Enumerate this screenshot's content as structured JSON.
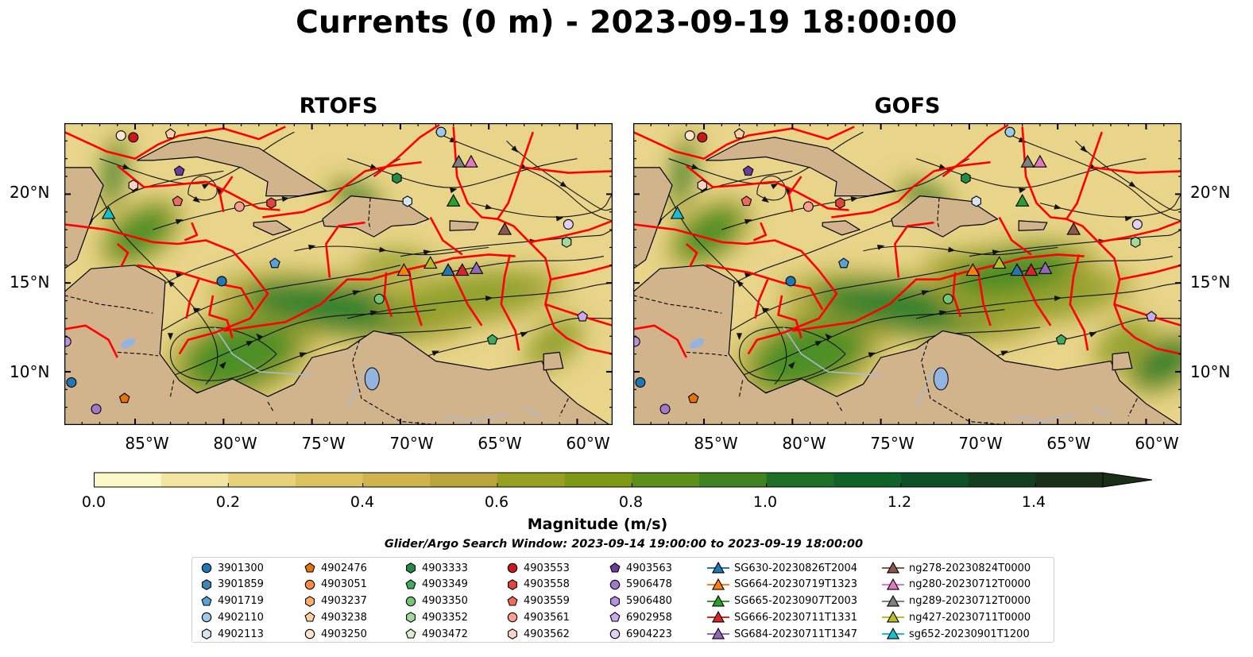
{
  "title": "Currents (0 m) - 2023-09-19 18:00:00",
  "panels": [
    {
      "title": "RTOFS"
    },
    {
      "title": "GOFS"
    }
  ],
  "lat_labels": [
    "20°N",
    "15°N",
    "10°N"
  ],
  "lon_labels": [
    "85°W",
    "80°W",
    "75°W",
    "70°W",
    "65°W",
    "60°W"
  ],
  "colorbar": {
    "label": "Magnitude (m/s)",
    "ticks": [
      "0.0",
      "0.2",
      "0.4",
      "0.6",
      "0.8",
      "1.0",
      "1.2",
      "1.4"
    ],
    "min": 0.0,
    "max": 1.5,
    "extend": "max",
    "colors": [
      "#fdf8c8",
      "#f3e6a0",
      "#e6d27a",
      "#dcc35f",
      "#cfb44e",
      "#b9a53a",
      "#98a022",
      "#7e9914",
      "#5d8f1b",
      "#3f8321",
      "#1f7027",
      "#0f6329",
      "#0c5226",
      "#113f20",
      "#192f17"
    ]
  },
  "search_window": "Glider/Argo Search Window: 2023-09-14 19:00:00 to 2023-09-19 18:00:00",
  "legend": [
    [
      {
        "label": "3901300",
        "marker": "circle",
        "color": "#1f77b4"
      },
      {
        "label": "3901859",
        "marker": "hexagon",
        "color": "#3a87c2"
      },
      {
        "label": "4901719",
        "marker": "pentagon",
        "color": "#5aa1d8"
      },
      {
        "label": "4902110",
        "marker": "circle",
        "color": "#9ecae9"
      },
      {
        "label": "4902113",
        "marker": "hexagon",
        "color": "#d4e6f5"
      }
    ],
    [
      {
        "label": "4902476",
        "marker": "pentagon",
        "color": "#e6720c"
      },
      {
        "label": "4903051",
        "marker": "circle",
        "color": "#fd8d3c"
      },
      {
        "label": "4903237",
        "marker": "hexagon",
        "color": "#fdae6b"
      },
      {
        "label": "4903238",
        "marker": "pentagon",
        "color": "#fdd0a2"
      },
      {
        "label": "4903250",
        "marker": "circle",
        "color": "#fee6ce"
      }
    ],
    [
      {
        "label": "4903333",
        "marker": "hexagon",
        "color": "#238b45"
      },
      {
        "label": "4903349",
        "marker": "pentagon",
        "color": "#41ab5d"
      },
      {
        "label": "4903350",
        "marker": "circle",
        "color": "#74c476"
      },
      {
        "label": "4903352",
        "marker": "hexagon",
        "color": "#a1d99b"
      },
      {
        "label": "4903472",
        "marker": "pentagon",
        "color": "#d8f0d0"
      }
    ],
    [
      {
        "label": "4903553",
        "marker": "circle",
        "color": "#cb181d"
      },
      {
        "label": "4903558",
        "marker": "hexagon",
        "color": "#e0463a"
      },
      {
        "label": "4903559",
        "marker": "pentagon",
        "color": "#f06a5a"
      },
      {
        "label": "4903561",
        "marker": "circle",
        "color": "#fc9f8f"
      },
      {
        "label": "4903562",
        "marker": "hexagon",
        "color": "#fdd3c8"
      }
    ],
    [
      {
        "label": "4903563",
        "marker": "pentagon",
        "color": "#6a3d9a"
      },
      {
        "label": "5906478",
        "marker": "circle",
        "color": "#9e7ac8"
      },
      {
        "label": "5906480",
        "marker": "hexagon",
        "color": "#b592df"
      },
      {
        "label": "6902958",
        "marker": "pentagon",
        "color": "#c9aaf0"
      },
      {
        "label": "6904223",
        "marker": "circle",
        "color": "#e3d0f7"
      }
    ],
    [
      {
        "label": "SG630-20230826T2004",
        "marker": "triangle-line",
        "color": "#1f77b4"
      },
      {
        "label": "SG664-20230719T1323",
        "marker": "triangle-line",
        "color": "#ff7f0e"
      },
      {
        "label": "SG665-20230907T2003",
        "marker": "triangle-line",
        "color": "#2ca02c"
      },
      {
        "label": "SG666-20230711T1331",
        "marker": "triangle-line",
        "color": "#d62728"
      },
      {
        "label": "SG684-20230711T1347",
        "marker": "triangle-line",
        "color": "#9467bd"
      }
    ],
    [
      {
        "label": "ng278-20230824T0000",
        "marker": "triangle-line",
        "color": "#8c564b"
      },
      {
        "label": "ng280-20230712T0000",
        "marker": "triangle-line",
        "color": "#e377c2"
      },
      {
        "label": "ng289-20230712T0000",
        "marker": "triangle-line",
        "color": "#7f7f7f"
      },
      {
        "label": "ng427-20230711T0000",
        "marker": "triangle-line",
        "color": "#bcbd22"
      },
      {
        "label": "sg652-20230901T1200",
        "marker": "triangle-line",
        "color": "#17becf"
      }
    ]
  ],
  "map_extent": {
    "lon": [
      -89,
      -58
    ],
    "lat": [
      7,
      24
    ]
  },
  "colors": {
    "land": "#d2b48c",
    "eez": "#ff0000",
    "rivers": "#a8bcd4",
    "lakes": "#93b3e0"
  }
}
